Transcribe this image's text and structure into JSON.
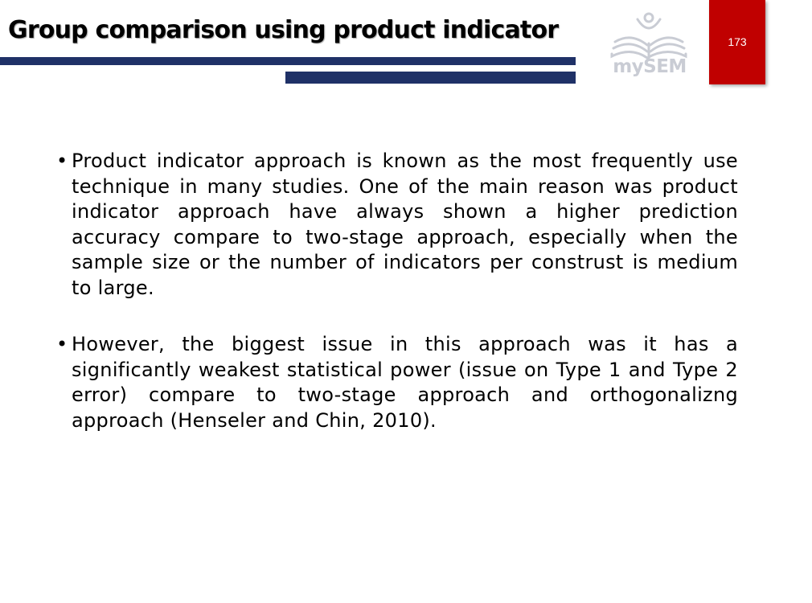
{
  "header": {
    "title": "Group comparison using product indicator",
    "logo_text": "mySEM",
    "page_number": "173"
  },
  "colors": {
    "title_bar": "#1f3167",
    "page_box": "#c00000",
    "logo": "#c9ccd4"
  },
  "bullets": [
    "Product indicator approach is known as the most frequently use technique in many studies. One of the main reason was product indicator approach have always shown a higher prediction accuracy compare to two-stage approach, especially when the sample size or the number of indicators per construst is medium to large.",
    "However, the biggest issue in this approach was it has a significantly weakest statistical power (issue on Type 1 and Type 2 error) compare to two-stage approach and orthogonalizng approach (Henseler and Chin, 2010)."
  ]
}
